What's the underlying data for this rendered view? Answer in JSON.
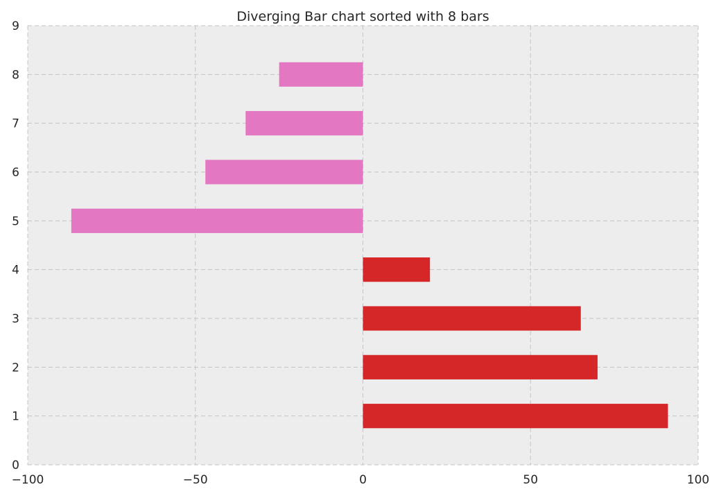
{
  "chart_data": {
    "type": "bar",
    "orientation": "horizontal",
    "title": "Diverging Bar chart sorted with 8 bars",
    "xlabel": "",
    "ylabel": "",
    "categories": [
      1,
      2,
      3,
      4,
      5,
      6,
      7,
      8
    ],
    "values": [
      91,
      70,
      65,
      20,
      -87,
      -47,
      -35,
      -25
    ],
    "bar_colors": [
      "#d62728",
      "#d62728",
      "#d62728",
      "#d62728",
      "#e377c2",
      "#e377c2",
      "#e377c2",
      "#e377c2"
    ],
    "xlim": [
      -100,
      100
    ],
    "ylim": [
      0,
      9
    ],
    "x_ticks": [
      -100,
      -50,
      0,
      50,
      100
    ],
    "x_tick_labels": [
      "−100",
      "−50",
      "0",
      "50",
      "100"
    ],
    "y_ticks": [
      0,
      1,
      2,
      3,
      4,
      5,
      6,
      7,
      8,
      9
    ],
    "y_tick_labels": [
      "0",
      "1",
      "2",
      "3",
      "4",
      "5",
      "6",
      "7",
      "8",
      "9"
    ],
    "grid": true,
    "plot_background": "#ededed"
  }
}
